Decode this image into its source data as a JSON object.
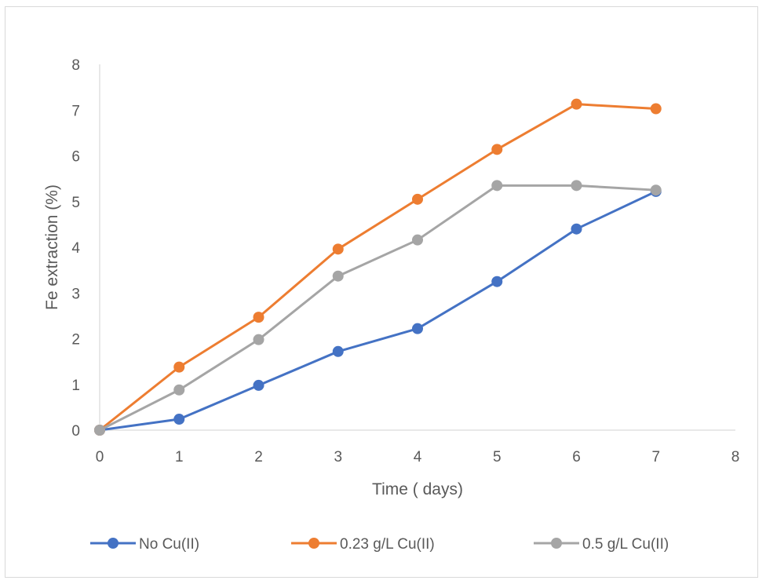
{
  "chart_data": {
    "type": "line",
    "title": "",
    "xlabel": "Time ( days)",
    "ylabel": "Fe extraction (%)",
    "xlim": [
      0,
      8
    ],
    "ylim": [
      0,
      8
    ],
    "xticks": [
      "0",
      "1",
      "2",
      "3",
      "4",
      "5",
      "6",
      "7",
      "8"
    ],
    "yticks": [
      "0",
      "1",
      "2",
      "3",
      "4",
      "5",
      "6",
      "7",
      "8"
    ],
    "grid": false,
    "legend_position": "bottom",
    "x": [
      0,
      1,
      2,
      3,
      4,
      5,
      6,
      7
    ],
    "series": [
      {
        "name": "No Cu(II)",
        "color": "#4472c4",
        "values": [
          0,
          0.24,
          0.98,
          1.72,
          2.22,
          3.25,
          4.4,
          5.22
        ]
      },
      {
        "name": "0.23 g/L Cu(II)",
        "color": "#ed7d31",
        "values": [
          0,
          1.38,
          2.47,
          3.96,
          5.05,
          6.14,
          7.13,
          7.03
        ]
      },
      {
        "name": "0.5 g/L Cu(II)",
        "color": "#a5a5a5",
        "values": [
          0,
          0.88,
          1.98,
          3.37,
          4.16,
          5.35,
          5.35,
          5.25
        ]
      }
    ]
  }
}
